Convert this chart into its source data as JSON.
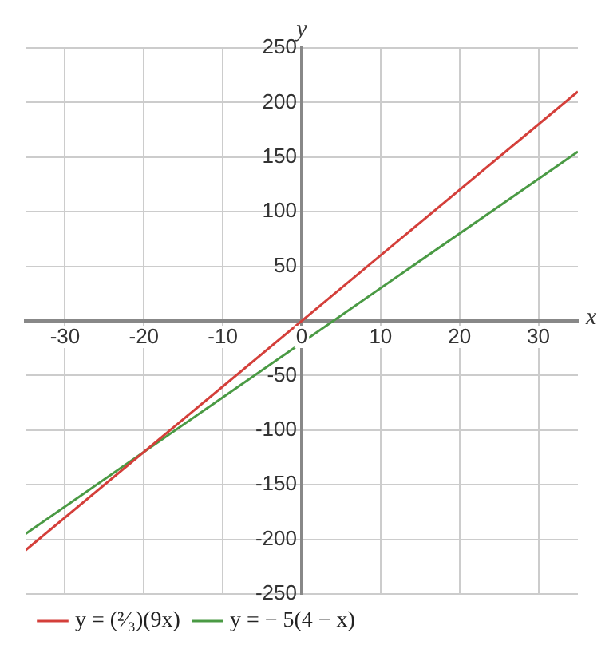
{
  "chart_data": {
    "type": "line",
    "xlabel": "x",
    "ylabel": "y",
    "x": [
      -35,
      35
    ],
    "series": [
      {
        "name": "y = (²⁄₃)(9x)",
        "color": "#d43f3a",
        "values": [
          -210,
          210
        ]
      },
      {
        "name": "y = − 5(4 − x)",
        "color": "#4a9a44",
        "values": [
          -195,
          155
        ]
      }
    ],
    "xlim": [
      -35,
      35
    ],
    "xticks": [
      -30,
      -20,
      -10,
      0,
      10,
      20,
      30
    ],
    "ylim": [
      -250,
      250
    ],
    "yticks": [
      -250,
      -200,
      -150,
      -100,
      -50,
      {
        "value": 0,
        "label": null
      },
      50,
      100,
      150,
      200,
      250
    ],
    "grid": true,
    "legend": "bottom",
    "marker": "none",
    "line_style": "solid"
  }
}
